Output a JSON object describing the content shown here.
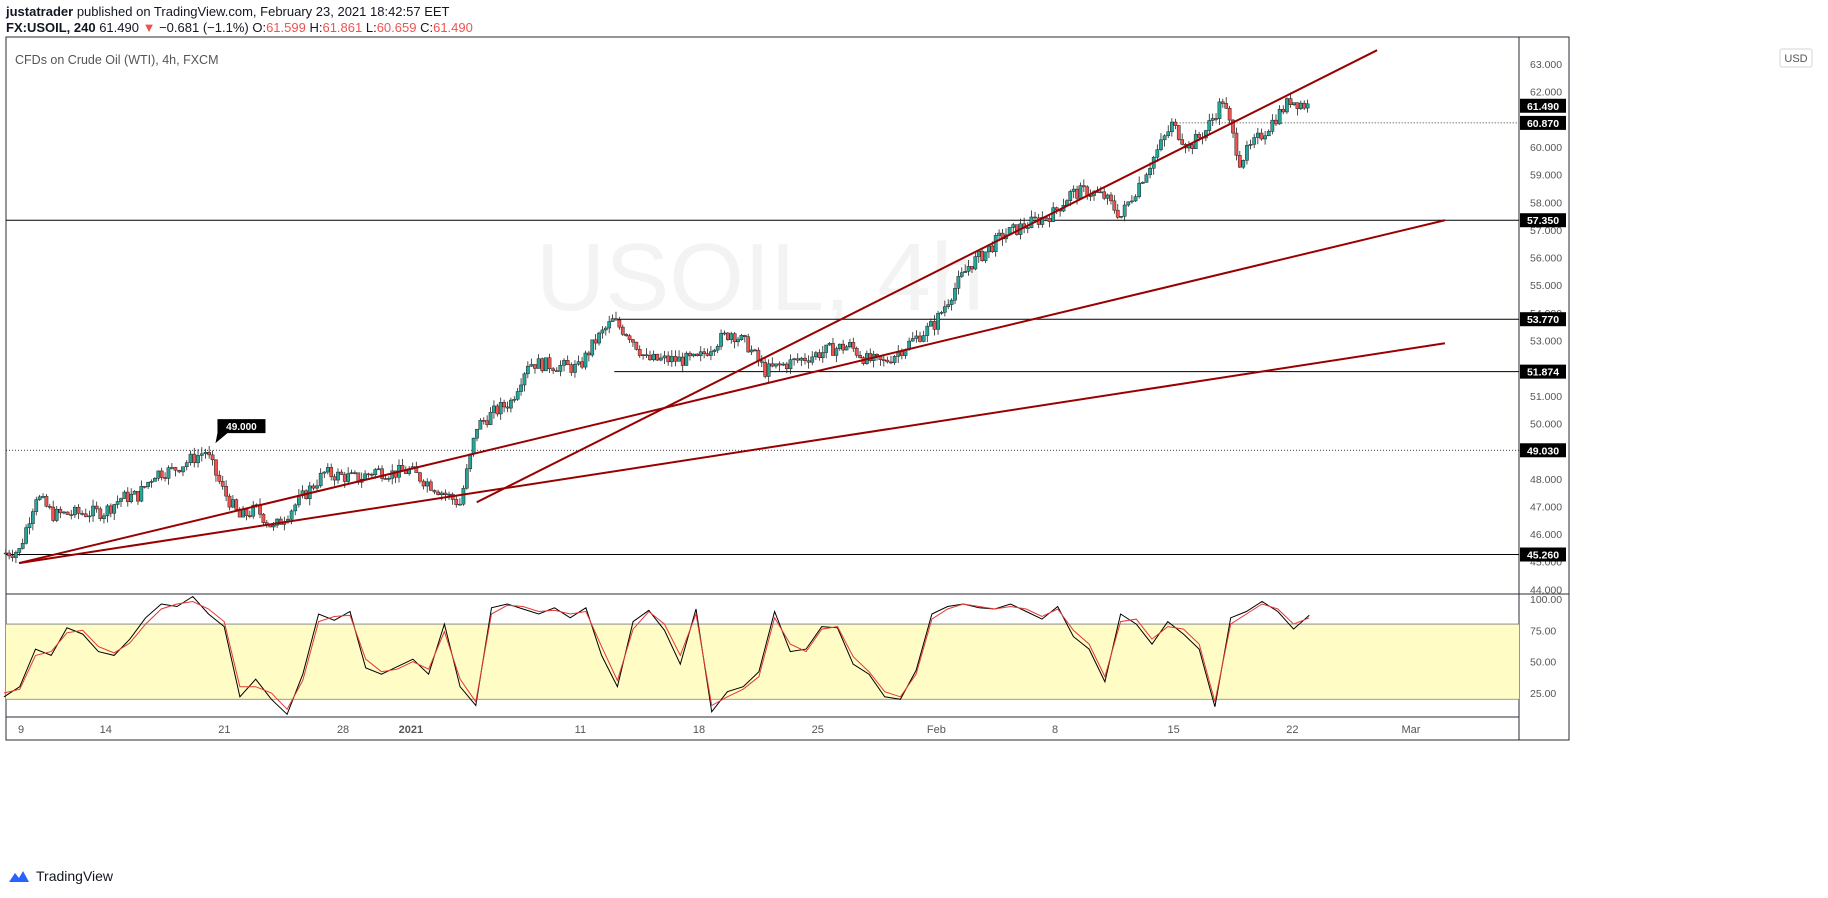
{
  "header": {
    "author": "justatrader",
    "published_text": "published on TradingView.com, February 23, 2021 18:42:57 EET",
    "symbol": "FX:USOIL, 240",
    "last": "61.490",
    "change_arrow": "▼",
    "change": "−0.681 (−1.1%)",
    "o_label": "O:",
    "o_value": "61.599",
    "h_label": "H:",
    "h_value": "61.861",
    "l_label": "L:",
    "l_value": "60.659",
    "c_label": "C:",
    "c_value": "61.490"
  },
  "legend": "CFDs on Crude Oil (WTI), 4h, FXCM",
  "watermark": "USOIL, 4h",
  "currency_button": "USD",
  "footer": {
    "brand": "TradingView"
  },
  "colors": {
    "up": "#26a69a",
    "down": "#ef5350",
    "trend": "#990000",
    "stoch_k": "#000000",
    "stoch_d": "#e53935",
    "stoch_band": "#fffcc6"
  },
  "chart_data": [
    {
      "type": "candlestick",
      "title": "CFDs on Crude Oil (WTI), 4h, FXCM",
      "ylim": [
        44,
        63.5
      ],
      "y_ticks": [
        "63.000",
        "62.000",
        "61.000",
        "60.000",
        "59.000",
        "58.000",
        "57.000",
        "56.000",
        "55.000",
        "54.000",
        "53.000",
        "52.000",
        "51.000",
        "50.000",
        "49.000",
        "48.000",
        "47.000",
        "46.000",
        "45.000",
        "44.000"
      ],
      "x_ticks": [
        {
          "label": "9",
          "date": "2020-12-09"
        },
        {
          "label": "14",
          "date": "2020-12-14"
        },
        {
          "label": "21",
          "date": "2020-12-21"
        },
        {
          "label": "28",
          "date": "2020-12-28"
        },
        {
          "label": "2021",
          "date": "2021-01-01"
        },
        {
          "label": "11",
          "date": "2021-01-11"
        },
        {
          "label": "18",
          "date": "2021-01-18"
        },
        {
          "label": "25",
          "date": "2021-01-25"
        },
        {
          "label": "Feb",
          "date": "2021-02-01"
        },
        {
          "label": "8",
          "date": "2021-02-08"
        },
        {
          "label": "15",
          "date": "2021-02-15"
        },
        {
          "label": "22",
          "date": "2021-02-22"
        },
        {
          "label": "Mar",
          "date": "2021-03-01"
        }
      ],
      "close_path": [
        [
          "2020-12-08",
          45.3
        ],
        [
          "2020-12-09",
          45.4
        ],
        [
          "2020-12-10",
          47.4
        ],
        [
          "2020-12-11",
          46.7
        ],
        [
          "2020-12-14",
          46.8
        ],
        [
          "2020-12-15",
          47.3
        ],
        [
          "2020-12-16",
          47.4
        ],
        [
          "2020-12-17",
          48.2
        ],
        [
          "2020-12-18",
          48.3
        ],
        [
          "2020-12-20",
          49.0
        ],
        [
          "2020-12-21",
          47.6
        ],
        [
          "2020-12-22",
          46.6
        ],
        [
          "2020-12-23",
          46.9
        ],
        [
          "2020-12-24",
          46.2
        ],
        [
          "2020-12-27",
          48.2
        ],
        [
          "2020-12-28",
          48.1
        ],
        [
          "2020-12-29",
          48.0
        ],
        [
          "2020-12-30",
          48.3
        ],
        [
          "2020-12-31",
          48.2
        ],
        [
          "2021-01-01",
          48.3
        ],
        [
          "2021-01-04",
          47.1
        ],
        [
          "2021-01-05",
          49.9
        ],
        [
          "2021-01-06",
          50.4
        ],
        [
          "2021-01-07",
          50.8
        ],
        [
          "2021-01-08",
          52.2
        ],
        [
          "2021-01-11",
          52.0
        ],
        [
          "2021-01-12",
          53.0
        ],
        [
          "2021-01-13",
          53.7
        ],
        [
          "2021-01-14",
          53.2
        ],
        [
          "2021-01-15",
          52.3
        ],
        [
          "2021-01-18",
          52.3
        ],
        [
          "2021-01-19",
          52.9
        ],
        [
          "2021-01-20",
          53.3
        ],
        [
          "2021-01-21",
          52.8
        ],
        [
          "2021-01-22",
          51.9
        ],
        [
          "2021-01-25",
          52.5
        ],
        [
          "2021-01-26",
          52.7
        ],
        [
          "2021-01-27",
          52.8
        ],
        [
          "2021-01-28",
          52.3
        ],
        [
          "2021-01-29",
          52.2
        ],
        [
          "2021-02-01",
          53.6
        ],
        [
          "2021-02-02",
          54.7
        ],
        [
          "2021-02-03",
          55.7
        ],
        [
          "2021-02-04",
          56.2
        ],
        [
          "2021-02-05",
          56.8
        ],
        [
          "2021-02-08",
          57.6
        ],
        [
          "2021-02-09",
          58.3
        ],
        [
          "2021-02-10",
          58.4
        ],
        [
          "2021-02-11",
          58.2
        ],
        [
          "2021-02-12",
          57.5
        ],
        [
          "2021-02-15",
          60.8
        ],
        [
          "2021-02-16",
          60.0
        ],
        [
          "2021-02-17",
          60.6
        ],
        [
          "2021-02-18",
          61.7
        ],
        [
          "2021-02-19",
          59.5
        ],
        [
          "2021-02-22",
          61.7
        ],
        [
          "2021-02-23",
          61.49
        ]
      ],
      "trendlines": [
        {
          "from": [
            "2020-12-08",
            44.95
          ],
          "to": [
            "2021-03-03",
            57.35
          ]
        },
        {
          "from": [
            "2020-12-08",
            44.95
          ],
          "to": [
            "2021-03-03",
            52.9
          ]
        },
        {
          "from": [
            "2021-01-04",
            47.15
          ],
          "to": [
            "2021-02-27",
            63.5
          ]
        }
      ],
      "levels": [
        {
          "value": 57.35,
          "label": "57.350",
          "style": "solid"
        },
        {
          "value": 53.77,
          "label": "53.770",
          "style": "solid"
        },
        {
          "value": 51.874,
          "label": "51.874",
          "style": "solid"
        },
        {
          "value": 49.03,
          "label": "49.030",
          "style": "dotted"
        },
        {
          "value": 45.26,
          "label": "45.260",
          "style": "solid"
        },
        {
          "value": 60.87,
          "label": "60.870",
          "style": "dotted"
        }
      ],
      "last_price": {
        "value": 61.49,
        "label": "61.490"
      },
      "annotation": {
        "text": "49.000",
        "date": "2020-12-20",
        "value": 49.0
      }
    },
    {
      "type": "line",
      "title": "",
      "ylim": [
        0,
        110
      ],
      "y_ticks": [
        "100.00",
        "75.00",
        "50.00",
        "25.00"
      ],
      "band": [
        20,
        80
      ],
      "series": [
        {
          "values": [
            22,
            30,
            60,
            55,
            77,
            72,
            58,
            55,
            68,
            85,
            96,
            94,
            102,
            88,
            78,
            22,
            36,
            20,
            8,
            40,
            88,
            83,
            90,
            45,
            40,
            46,
            52,
            40,
            80,
            30,
            15,
            93,
            96,
            92,
            88,
            93,
            85,
            93,
            55,
            30,
            82,
            91,
            75,
            48,
            92,
            10,
            26,
            30,
            42,
            90,
            58,
            60,
            78,
            77,
            48,
            40,
            22,
            20,
            43,
            88,
            94,
            96,
            93,
            92,
            96,
            90,
            84,
            94,
            70,
            60,
            34,
            88,
            80,
            64,
            82,
            72,
            60,
            14,
            85,
            90,
            98,
            90,
            76,
            87
          ]
        },
        {
          "values": [
            25,
            28,
            55,
            58,
            73,
            75,
            62,
            57,
            65,
            80,
            92,
            96,
            98,
            92,
            82,
            30,
            30,
            25,
            12,
            35,
            82,
            86,
            87,
            52,
            42,
            44,
            50,
            44,
            74,
            36,
            18,
            88,
            95,
            94,
            90,
            91,
            88,
            90,
            62,
            35,
            76,
            90,
            80,
            55,
            88,
            15,
            22,
            28,
            38,
            85,
            64,
            58,
            76,
            78,
            54,
            42,
            26,
            22,
            40,
            84,
            92,
            96,
            94,
            92,
            94,
            92,
            86,
            92,
            75,
            64,
            38,
            82,
            84,
            68,
            78,
            76,
            64,
            18,
            80,
            88,
            96,
            92,
            80,
            85
          ]
        }
      ]
    }
  ]
}
